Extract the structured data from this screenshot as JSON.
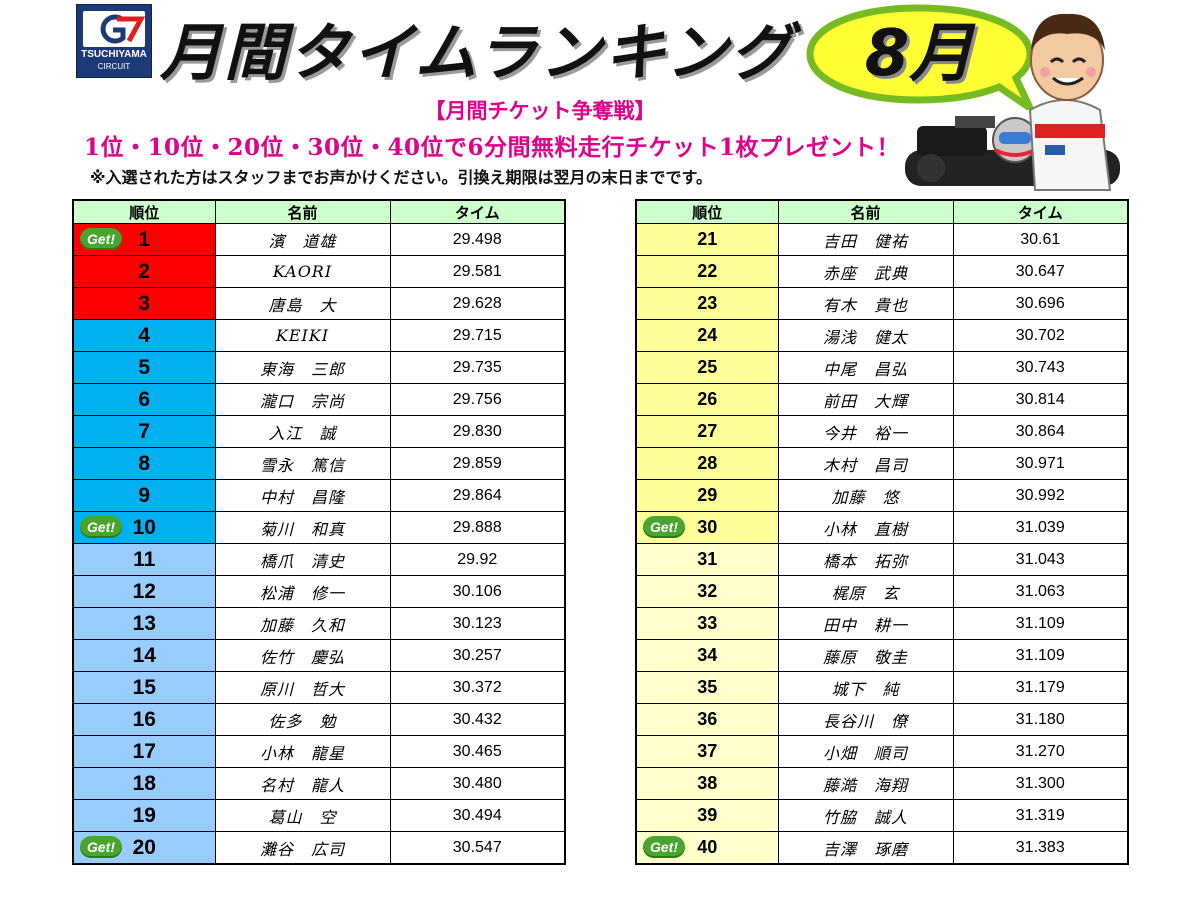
{
  "logo": {
    "brand": "TSUCHIYAMA",
    "sub": "CIRCUIT",
    "mark": "G7"
  },
  "title": "月間タイムランキング",
  "month": "8月",
  "notice": {
    "heading": "【月間チケット争奪戦】",
    "prize": "1位・10位・20位・30位・40位で6分間無料走行チケット1枚プレゼント！",
    "note": "※入選された方はスタッフまでお声かけください。引換え期限は翌月の末日までです。"
  },
  "headers": {
    "rank": "順位",
    "name": "名前",
    "time": "タイム"
  },
  "badge": "Get!",
  "colors": {
    "top3": "#ff0000",
    "top10": "#00b0f0",
    "top20": "#99ccff",
    "top30": "#ffff99",
    "top40": "#ffffcc",
    "header": "#ccffcc",
    "notice": "#e0008a"
  },
  "left_rows": [
    {
      "rank": "1",
      "name": "濱　道雄",
      "time": "29.498",
      "get": true
    },
    {
      "rank": "2",
      "name": "KAORI",
      "time": "29.581",
      "get": false
    },
    {
      "rank": "3",
      "name": "唐島　大",
      "time": "29.628",
      "get": false
    },
    {
      "rank": "4",
      "name": "KEIKI",
      "time": "29.715",
      "get": false
    },
    {
      "rank": "5",
      "name": "東海　三郎",
      "time": "29.735",
      "get": false
    },
    {
      "rank": "6",
      "name": "瀧口　宗尚",
      "time": "29.756",
      "get": false
    },
    {
      "rank": "7",
      "name": "入江　誠",
      "time": "29.830",
      "get": false
    },
    {
      "rank": "8",
      "name": "雪永　篤信",
      "time": "29.859",
      "get": false
    },
    {
      "rank": "9",
      "name": "中村　昌隆",
      "time": "29.864",
      "get": false
    },
    {
      "rank": "10",
      "name": "菊川　和真",
      "time": "29.888",
      "get": true
    },
    {
      "rank": "11",
      "name": "橋爪　清史",
      "time": "29.92",
      "get": false
    },
    {
      "rank": "12",
      "name": "松浦　修一",
      "time": "30.106",
      "get": false
    },
    {
      "rank": "13",
      "name": "加藤　久和",
      "time": "30.123",
      "get": false
    },
    {
      "rank": "14",
      "name": "佐竹　慶弘",
      "time": "30.257",
      "get": false
    },
    {
      "rank": "15",
      "name": "原川　哲大",
      "time": "30.372",
      "get": false
    },
    {
      "rank": "16",
      "name": "佐多　勉",
      "time": "30.432",
      "get": false
    },
    {
      "rank": "17",
      "name": "小林　龍星",
      "time": "30.465",
      "get": false
    },
    {
      "rank": "18",
      "name": "名村　龍人",
      "time": "30.480",
      "get": false
    },
    {
      "rank": "19",
      "name": "葛山　空",
      "time": "30.494",
      "get": false
    },
    {
      "rank": "20",
      "name": "灘谷　広司",
      "time": "30.547",
      "get": true
    }
  ],
  "right_rows": [
    {
      "rank": "21",
      "name": "吉田　健祐",
      "time": "30.61",
      "get": false
    },
    {
      "rank": "22",
      "name": "赤座　武典",
      "time": "30.647",
      "get": false
    },
    {
      "rank": "23",
      "name": "有木　貴也",
      "time": "30.696",
      "get": false
    },
    {
      "rank": "24",
      "name": "湯浅　健太",
      "time": "30.702",
      "get": false
    },
    {
      "rank": "25",
      "name": "中尾　昌弘",
      "time": "30.743",
      "get": false
    },
    {
      "rank": "26",
      "name": "前田　大輝",
      "time": "30.814",
      "get": false
    },
    {
      "rank": "27",
      "name": "今井　裕一",
      "time": "30.864",
      "get": false
    },
    {
      "rank": "28",
      "name": "木村　昌司",
      "time": "30.971",
      "get": false
    },
    {
      "rank": "29",
      "name": "加藤　悠",
      "time": "30.992",
      "get": false
    },
    {
      "rank": "30",
      "name": "小林　直樹",
      "time": "31.039",
      "get": true
    },
    {
      "rank": "31",
      "name": "橋本　拓弥",
      "time": "31.043",
      "get": false
    },
    {
      "rank": "32",
      "name": "梶原　玄",
      "time": "31.063",
      "get": false
    },
    {
      "rank": "33",
      "name": "田中　耕一",
      "time": "31.109",
      "get": false
    },
    {
      "rank": "34",
      "name": "藤原　敬圭",
      "time": "31.109",
      "get": false
    },
    {
      "rank": "35",
      "name": "城下　純",
      "time": "31.179",
      "get": false
    },
    {
      "rank": "36",
      "name": "長谷川　僚",
      "time": "31.180",
      "get": false
    },
    {
      "rank": "37",
      "name": "小畑　順司",
      "time": "31.270",
      "get": false
    },
    {
      "rank": "38",
      "name": "藤澔　海翔",
      "time": "31.300",
      "get": false
    },
    {
      "rank": "39",
      "name": "竹脇　誠人",
      "time": "31.319",
      "get": false
    },
    {
      "rank": "40",
      "name": "吉澤　琢磨",
      "time": "31.383",
      "get": true
    }
  ]
}
